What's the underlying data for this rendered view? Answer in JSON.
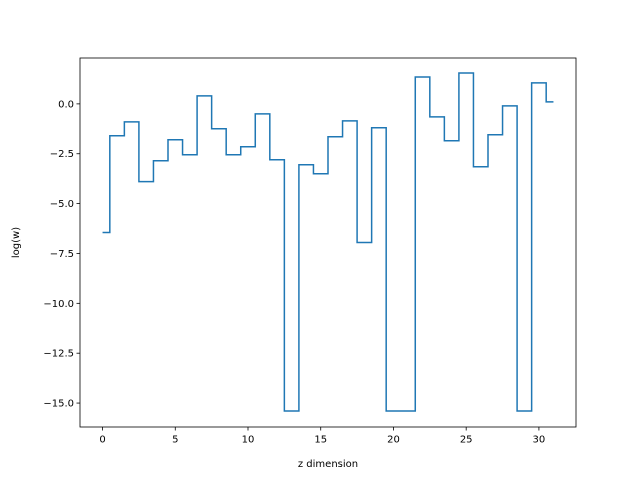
{
  "chart_data": {
    "type": "line",
    "drawstyle": "steps-mid",
    "title": "",
    "xlabel": "z dimension",
    "ylabel": "log(w)",
    "xlim": [
      -1.55,
      32.55
    ],
    "ylim": [
      -16.2,
      2.3
    ],
    "xticks": [
      0,
      5,
      10,
      15,
      20,
      25,
      30
    ],
    "yticks": [
      0.0,
      -2.5,
      -5.0,
      -7.5,
      -10.0,
      -12.5,
      -15.0
    ],
    "xtick_labels": [
      "0",
      "5",
      "10",
      "15",
      "20",
      "25",
      "30"
    ],
    "ytick_labels": [
      "0.0",
      "−2.5",
      "−5.0",
      "−7.5",
      "−10.0",
      "−12.5",
      "−15.0"
    ],
    "grid": false,
    "line_color": "#1f77b4",
    "series": [
      {
        "x": [
          0,
          1,
          2,
          3,
          4,
          5,
          6,
          7,
          8,
          9,
          10,
          11,
          12,
          13,
          14,
          15,
          16,
          17,
          18,
          19,
          20,
          21,
          22,
          23,
          24,
          25,
          26,
          27,
          28,
          29,
          30,
          31
        ],
        "values": [
          -6.45,
          -1.6,
          -0.9,
          -3.9,
          -2.85,
          -1.8,
          -2.55,
          0.4,
          -1.25,
          -2.55,
          -2.15,
          -0.5,
          -2.8,
          -15.4,
          -3.05,
          -3.5,
          -1.65,
          -0.85,
          -6.95,
          -1.2,
          -15.4,
          -15.4,
          1.35,
          -0.65,
          -1.85,
          1.55,
          -3.15,
          -1.55,
          -0.1,
          -15.4,
          1.05,
          0.1
        ]
      }
    ]
  }
}
